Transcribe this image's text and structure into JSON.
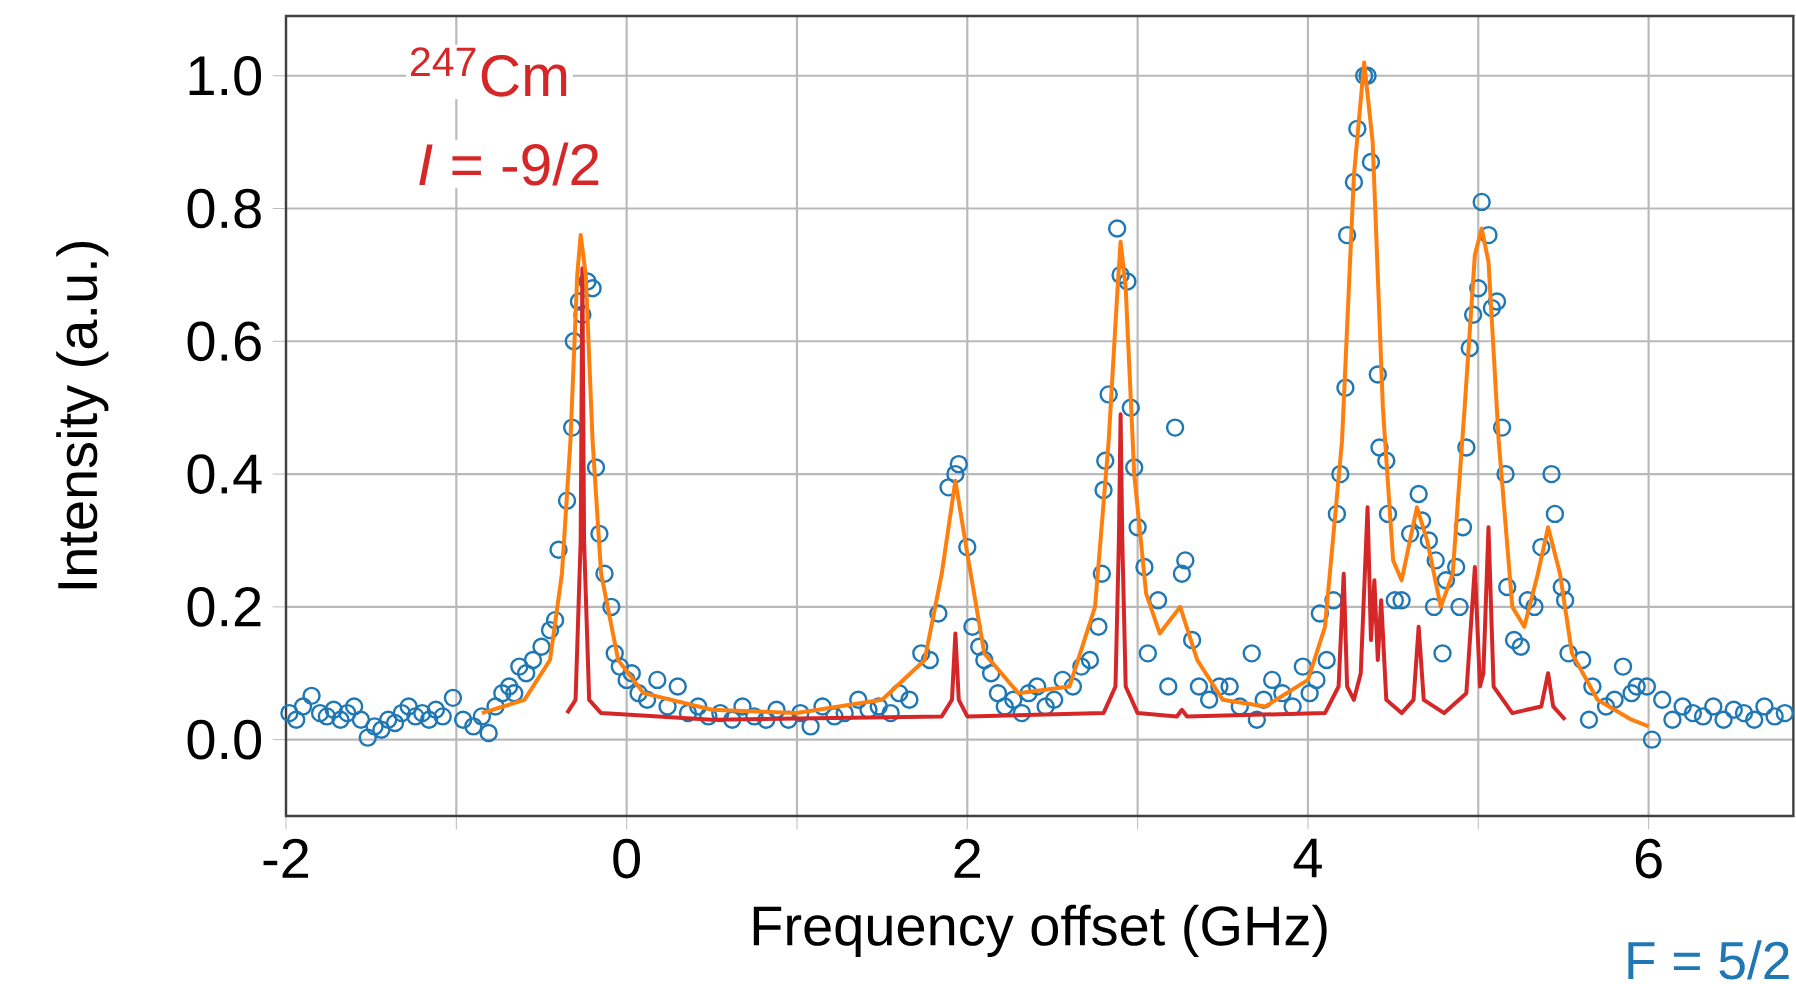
{
  "chart_data": {
    "type": "line",
    "xlabel": "Frequency offset (GHz)",
    "ylabel": "Intensity (a.u.)",
    "annotations": [
      "$^{247}$Cm",
      "*I* = -9/2",
      "F = 5/2"
    ],
    "xlim": [
      -2,
      6.85
    ],
    "ylim": [
      -0.115,
      1.09
    ],
    "xticks": [
      -2,
      {
        "value": -1,
        "label": null
      },
      0,
      {
        "value": 1,
        "label": null
      },
      2,
      {
        "value": 3,
        "label": null
      },
      4,
      {
        "value": 5,
        "label": null
      },
      6
    ],
    "yticks": [
      {
        "value": 0,
        "label": "0.0"
      },
      {
        "value": 0.2,
        "label": "0.2"
      },
      {
        "value": 0.4,
        "label": "0.4"
      },
      {
        "value": 0.6,
        "label": "0.6"
      },
      {
        "value": 0.8,
        "label": "0.8"
      },
      {
        "value": 1.0,
        "label": "1.0"
      }
    ],
    "grid": true,
    "series": [
      {
        "type": "scatter",
        "marker": "circle",
        "color": "#1f77b4",
        "x": [
          -1.98,
          -1.94,
          -1.9,
          -1.85,
          -1.8,
          -1.76,
          -1.72,
          -1.68,
          -1.64,
          -1.6,
          -1.56,
          -1.52,
          -1.48,
          -1.44,
          -1.4,
          -1.36,
          -1.32,
          -1.28,
          -1.24,
          -1.2,
          -1.16,
          -1.12,
          -1.08,
          -1.02,
          -0.96,
          -0.9,
          -0.85,
          -0.81,
          -0.77,
          -0.73,
          -0.69,
          -0.66,
          -0.63,
          -0.59,
          -0.55,
          -0.5,
          -0.45,
          -0.42,
          -0.4,
          -0.35,
          -0.32,
          -0.31,
          -0.28,
          -0.26,
          -0.23,
          -0.2,
          -0.18,
          -0.16,
          -0.13,
          -0.09,
          -0.07,
          -0.04,
          0.0,
          0.03,
          0.07,
          0.12,
          0.18,
          0.24,
          0.3,
          0.36,
          0.42,
          0.48,
          0.55,
          0.62,
          0.68,
          0.75,
          0.82,
          0.88,
          0.95,
          1.02,
          1.08,
          1.15,
          1.22,
          1.28,
          1.36,
          1.42,
          1.48,
          1.55,
          1.6,
          1.66,
          1.73,
          1.78,
          1.83,
          1.89,
          1.93,
          1.95,
          2.0,
          2.03,
          2.07,
          2.1,
          2.14,
          2.18,
          2.22,
          2.27,
          2.32,
          2.36,
          2.41,
          2.46,
          2.51,
          2.56,
          2.62,
          2.67,
          2.72,
          2.77,
          2.79,
          2.8,
          2.81,
          2.83,
          2.88,
          2.9,
          2.94,
          2.96,
          2.98,
          3.0,
          3.04,
          3.06,
          3.12,
          3.18,
          3.22,
          3.26,
          3.28,
          3.32,
          3.36,
          3.42,
          3.48,
          3.54,
          3.6,
          3.67,
          3.7,
          3.74,
          3.79,
          3.85,
          3.91,
          3.97,
          4.01,
          4.05,
          4.07,
          4.11,
          4.15,
          4.17,
          4.19,
          4.22,
          4.23,
          4.27,
          4.29,
          4.33,
          4.35,
          4.37,
          4.41,
          4.42,
          4.46,
          4.47,
          4.51,
          4.55,
          4.6,
          4.65,
          4.67,
          4.71,
          4.74,
          4.75,
          4.79,
          4.81,
          4.87,
          4.89,
          4.91,
          4.93,
          4.95,
          4.97,
          5.0,
          5.02,
          5.06,
          5.08,
          5.11,
          5.14,
          5.16,
          5.17,
          5.21,
          5.25,
          5.29,
          5.33,
          5.37,
          5.43,
          5.45,
          5.49,
          5.51,
          5.53,
          5.61,
          5.65,
          5.67,
          5.75,
          5.8,
          5.85,
          5.9,
          5.93,
          5.99,
          6.02,
          6.08,
          6.14,
          6.2,
          6.26,
          6.32,
          6.38,
          6.44,
          6.5,
          6.56,
          6.62,
          6.68,
          6.74,
          6.8
        ],
        "values": [
          0.04,
          0.03,
          0.05,
          0.066,
          0.04,
          0.035,
          0.045,
          0.03,
          0.04,
          0.05,
          0.03,
          0.003,
          0.02,
          0.015,
          0.03,
          0.025,
          0.04,
          0.05,
          0.035,
          0.04,
          0.03,
          0.045,
          0.035,
          0.063,
          0.03,
          0.02,
          0.035,
          0.01,
          0.05,
          0.07,
          0.08,
          0.07,
          0.11,
          0.1,
          0.12,
          0.14,
          0.165,
          0.18,
          0.286,
          0.36,
          0.47,
          0.6,
          0.66,
          0.64,
          0.69,
          0.68,
          0.41,
          0.31,
          0.25,
          0.2,
          0.13,
          0.11,
          0.09,
          0.1,
          0.07,
          0.06,
          0.09,
          0.05,
          0.08,
          0.04,
          0.05,
          0.035,
          0.04,
          0.03,
          0.05,
          0.035,
          0.03,
          0.045,
          0.03,
          0.04,
          0.02,
          0.05,
          0.035,
          0.04,
          0.06,
          0.045,
          0.05,
          0.04,
          0.07,
          0.06,
          0.13,
          0.12,
          0.19,
          0.38,
          0.4,
          0.415,
          0.29,
          0.17,
          0.14,
          0.12,
          0.1,
          0.07,
          0.05,
          0.06,
          0.04,
          0.07,
          0.08,
          0.05,
          0.06,
          0.09,
          0.08,
          0.11,
          0.12,
          0.17,
          0.25,
          0.376,
          0.42,
          0.52,
          0.77,
          0.7,
          0.69,
          0.5,
          0.41,
          0.32,
          0.26,
          0.13,
          0.21,
          0.08,
          0.47,
          0.25,
          0.27,
          0.15,
          0.08,
          0.06,
          0.08,
          0.08,
          0.05,
          0.13,
          0.03,
          0.06,
          0.09,
          0.07,
          0.05,
          0.11,
          0.07,
          0.09,
          0.19,
          0.12,
          0.21,
          0.34,
          0.4,
          0.53,
          0.76,
          0.84,
          0.92,
          1.0,
          1.0,
          0.87,
          0.55,
          0.44,
          0.42,
          0.34,
          0.21,
          0.21,
          0.31,
          0.37,
          0.33,
          0.3,
          0.2,
          0.27,
          0.13,
          0.24,
          0.26,
          0.2,
          0.32,
          0.44,
          0.59,
          0.64,
          0.68,
          0.81,
          0.76,
          0.65,
          0.66,
          0.47,
          0.4,
          0.23,
          0.15,
          0.14,
          0.21,
          0.2,
          0.29,
          0.4,
          0.34,
          0.23,
          0.21,
          0.13,
          0.12,
          0.03,
          0.08,
          0.05,
          0.06,
          0.11,
          0.07,
          0.08,
          0.08,
          0.0,
          0.06,
          0.03,
          0.05,
          0.04,
          0.035,
          0.05,
          0.03,
          0.045,
          0.04,
          0.03,
          0.05,
          0.035,
          0.04
        ]
      },
      {
        "color": "#d62728",
        "x": [
          -0.35,
          -0.3,
          -0.27,
          -0.26,
          -0.25,
          -0.22,
          -0.15,
          0.5,
          1.85,
          1.91,
          1.93,
          1.95,
          2.0,
          2.8,
          2.87,
          2.89,
          2.9,
          2.91,
          2.93,
          3.0,
          3.23,
          3.26,
          3.29,
          4.1,
          4.18,
          4.21,
          4.23,
          4.27,
          4.31,
          4.35,
          4.37,
          4.39,
          4.41,
          4.43,
          4.46,
          4.55,
          4.62,
          4.65,
          4.68,
          4.8,
          4.93,
          4.98,
          5.01,
          5.03,
          5.06,
          5.09,
          5.2,
          5.37,
          5.41,
          5.44,
          5.51
        ],
        "values": [
          0.04,
          0.06,
          0.3,
          0.71,
          0.3,
          0.06,
          0.04,
          0.03,
          0.035,
          0.06,
          0.16,
          0.06,
          0.035,
          0.04,
          0.08,
          0.3,
          0.49,
          0.3,
          0.08,
          0.04,
          0.035,
          0.045,
          0.035,
          0.04,
          0.08,
          0.25,
          0.08,
          0.06,
          0.1,
          0.35,
          0.15,
          0.24,
          0.12,
          0.21,
          0.06,
          0.04,
          0.06,
          0.17,
          0.06,
          0.04,
          0.07,
          0.26,
          0.08,
          0.1,
          0.32,
          0.08,
          0.04,
          0.05,
          0.1,
          0.05,
          0.03
        ]
      },
      {
        "color": "#ff7f0e",
        "x": [
          -0.85,
          -0.6,
          -0.45,
          -0.38,
          -0.33,
          -0.29,
          -0.27,
          -0.24,
          -0.2,
          -0.15,
          -0.05,
          0.1,
          0.5,
          1.0,
          1.5,
          1.75,
          1.85,
          1.93,
          2.0,
          2.1,
          2.3,
          2.6,
          2.75,
          2.83,
          2.88,
          2.9,
          2.93,
          2.98,
          3.05,
          3.13,
          3.25,
          3.35,
          3.5,
          3.75,
          4.0,
          4.1,
          4.2,
          4.27,
          4.33,
          4.38,
          4.44,
          4.5,
          4.55,
          4.64,
          4.7,
          4.78,
          4.85,
          4.92,
          4.98,
          5.02,
          5.06,
          5.12,
          5.2,
          5.27,
          5.35,
          5.41,
          5.48,
          5.55,
          5.7,
          5.9,
          6.0
        ],
        "values": [
          0.04,
          0.06,
          0.12,
          0.25,
          0.45,
          0.7,
          0.76,
          0.7,
          0.45,
          0.25,
          0.12,
          0.07,
          0.045,
          0.04,
          0.06,
          0.12,
          0.25,
          0.39,
          0.28,
          0.13,
          0.07,
          0.08,
          0.2,
          0.45,
          0.67,
          0.75,
          0.68,
          0.4,
          0.22,
          0.16,
          0.2,
          0.12,
          0.06,
          0.05,
          0.09,
          0.17,
          0.45,
          0.85,
          1.02,
          0.9,
          0.5,
          0.27,
          0.24,
          0.35,
          0.3,
          0.2,
          0.25,
          0.5,
          0.73,
          0.77,
          0.72,
          0.45,
          0.2,
          0.17,
          0.25,
          0.32,
          0.25,
          0.13,
          0.06,
          0.03,
          0.02
        ]
      }
    ]
  }
}
